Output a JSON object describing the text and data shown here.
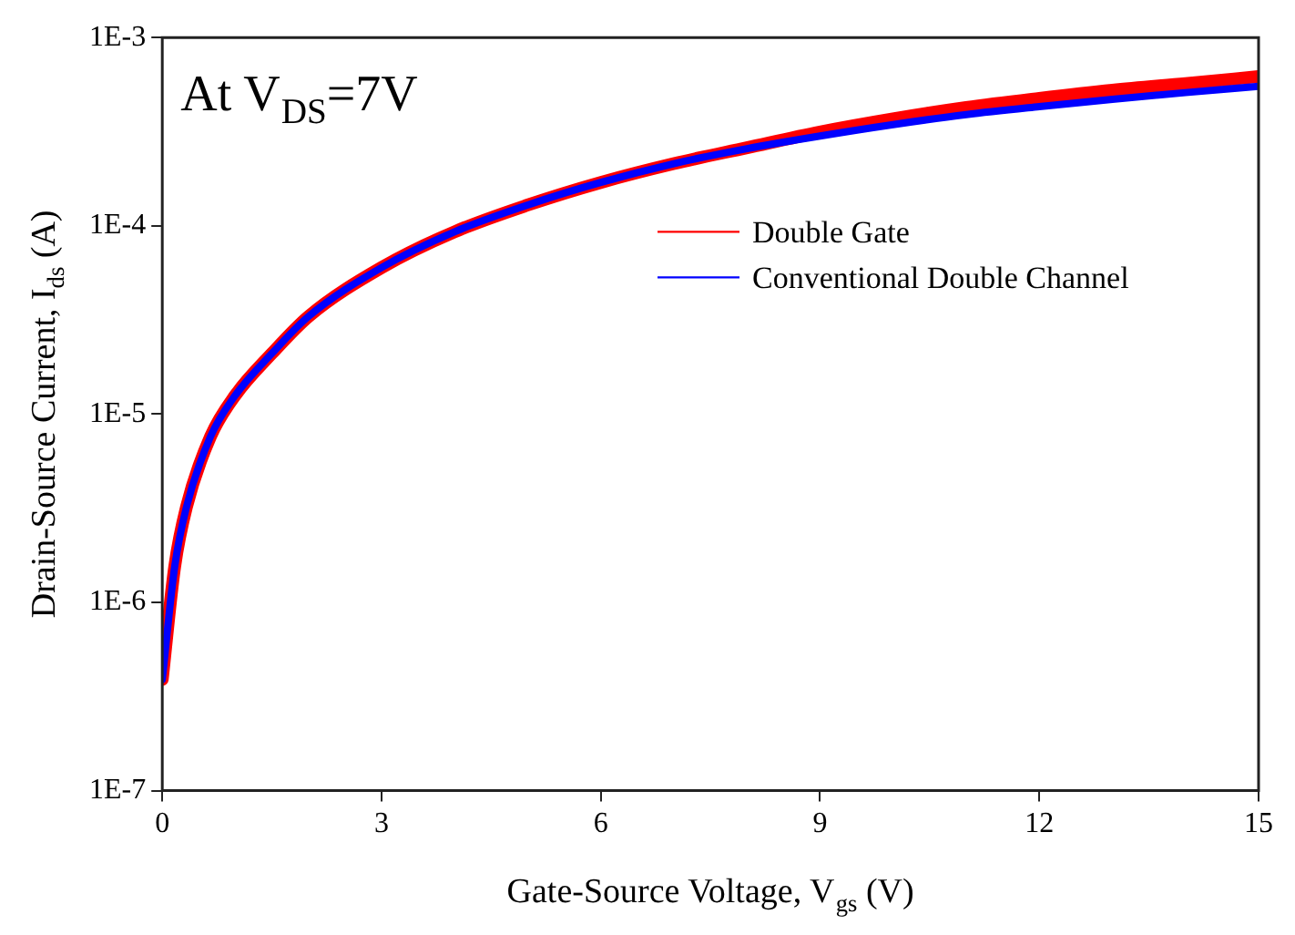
{
  "chart_data": {
    "type": "line",
    "xlabel": "Gate-Source Voltage, V$_{gs}$ (V)",
    "ylabel": "Drain-Source Current, I$_{ds}$ (A)",
    "annotations": [
      "At V$_{DS}$=7V"
    ],
    "x": [
      0,
      0.17,
      0.33,
      0.66,
      1,
      1.5,
      2,
      3,
      4,
      5,
      6,
      7,
      8,
      9,
      10,
      11,
      12,
      13,
      14,
      15
    ],
    "series": [
      {
        "name": "Double Gate",
        "color": "#ff0000",
        "values": [
          3.9e-07,
          1.55e-06,
          3.2e-06,
          7.6e-06,
          1.26e-05,
          2.1e-05,
          3.3e-05,
          6e-05,
          9.3e-05,
          0.000129,
          0.00017,
          0.000214,
          0.00026,
          0.000315,
          0.00037,
          0.000425,
          0.000475,
          0.000525,
          0.00057,
          0.00062
        ]
      },
      {
        "name": "Conventional Double Channel",
        "color": "#0000ff",
        "values": [
          3.9e-07,
          1.55e-06,
          3.2e-06,
          7.6e-06,
          1.26e-05,
          2.1e-05,
          3.3e-05,
          6e-05,
          9.3e-05,
          0.000129,
          0.00017,
          0.000214,
          0.000257,
          0.0003,
          0.000345,
          0.00039,
          0.00043,
          0.00047,
          0.00051,
          0.00055
        ]
      }
    ],
    "xlim": [
      0,
      15
    ],
    "xticks": [
      0,
      3,
      6,
      9,
      12,
      15
    ],
    "ylim": [
      1e-07,
      0.001
    ],
    "yticks": [
      {
        "value": 1e-07,
        "label": "1E-7"
      },
      {
        "value": 1e-06,
        "label": "1E-6"
      },
      {
        "value": 1e-05,
        "label": "1E-5"
      },
      {
        "value": 0.0001,
        "label": "1E-4"
      },
      {
        "value": 0.001,
        "label": "1E-3"
      }
    ],
    "log": "y",
    "grid": false,
    "legend": "right"
  }
}
